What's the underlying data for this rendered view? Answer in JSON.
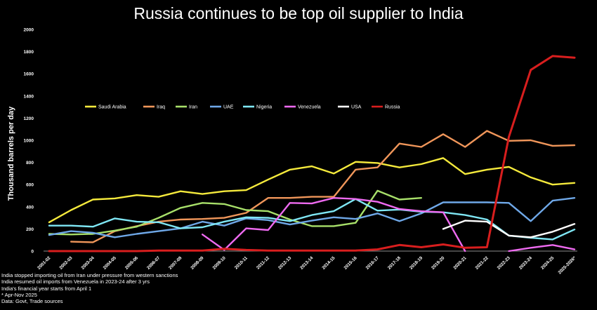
{
  "title": "Russia continues to be top oil supplier to India",
  "notes": [
    "India stopped importing oil from Iran under pressure from western sanctions",
    "India resumed oil imports from Venezuela in 2023-24 after 3 yrs",
    "India's financial year starts from April 1",
    "* Apr-Nov 2025",
    "Data: Govt, Trade sources"
  ],
  "chart_data": {
    "type": "line",
    "title": "Russia continues to be top oil supplier to India",
    "ylabel": "Thousand barrels per day",
    "xlabel": "",
    "ylim": [
      0,
      2000
    ],
    "yticks": [
      0,
      200,
      400,
      600,
      800,
      1000,
      1200,
      1400,
      1600,
      1800,
      2000
    ],
    "grid": false,
    "legend": "upper-left",
    "categories": [
      "2001-02",
      "2002-03",
      "2003-04",
      "2004-05",
      "2005-06",
      "2006-07",
      "2007-08",
      "2008-09",
      "2009-10",
      "2010-11",
      "2011-12",
      "2012-13",
      "2013-14",
      "2014-15",
      "2015-16",
      "2016-17",
      "2017-18",
      "2018-19",
      "2019-20",
      "2020-21",
      "2021-22",
      "2022-23",
      "2023-24",
      "2024-25",
      "2025-2026*"
    ],
    "series": [
      {
        "name": "Saudi Arabia",
        "color": "#f5ea3c",
        "values": [
          260,
          370,
          465,
          475,
          505,
          490,
          540,
          515,
          540,
          550,
          645,
          735,
          765,
          700,
          805,
          795,
          755,
          785,
          840,
          695,
          735,
          760,
          665,
          600,
          615
        ]
      },
      {
        "name": "Iraq",
        "color": "#f0965a",
        "values": [
          null,
          85,
          80,
          180,
          225,
          265,
          285,
          290,
          300,
          345,
          480,
          480,
          490,
          490,
          735,
          755,
          970,
          940,
          1055,
          940,
          1085,
          995,
          1000,
          950,
          955
        ]
      },
      {
        "name": "Iran",
        "color": "#a8e06a",
        "values": [
          155,
          150,
          155,
          185,
          220,
          300,
          390,
          435,
          425,
          370,
          360,
          285,
          225,
          225,
          255,
          545,
          465,
          480,
          null,
          null,
          null,
          null,
          null,
          null,
          null
        ]
      },
      {
        "name": "UAE",
        "color": "#6fa8e8",
        "values": [
          145,
          180,
          165,
          125,
          155,
          180,
          205,
          265,
          230,
          295,
          280,
          240,
          275,
          305,
          290,
          340,
          270,
          340,
          440,
          440,
          440,
          435,
          270,
          455,
          480
        ]
      },
      {
        "name": "Nigeria",
        "color": "#7fe7f5",
        "values": [
          230,
          230,
          220,
          295,
          265,
          260,
          205,
          215,
          265,
          305,
          300,
          270,
          325,
          360,
          470,
          365,
          375,
          355,
          350,
          325,
          285,
          140,
          120,
          105,
          195
        ]
      },
      {
        "name": "Venezuela",
        "color": "#ee6af0",
        "values": [
          null,
          null,
          null,
          null,
          null,
          null,
          null,
          150,
          10,
          205,
          190,
          435,
          430,
          480,
          470,
          445,
          380,
          360,
          350,
          0,
          null,
          0,
          30,
          55,
          15
        ]
      },
      {
        "name": "USA",
        "color": "#ffffff",
        "values": [
          null,
          null,
          null,
          null,
          null,
          null,
          null,
          null,
          null,
          null,
          null,
          null,
          null,
          null,
          null,
          null,
          null,
          null,
          200,
          275,
          265,
          140,
          125,
          175,
          245
        ]
      },
      {
        "name": "Russia",
        "color": "#d81e1e",
        "values": [
          0,
          0,
          0,
          0,
          0,
          5,
          5,
          5,
          20,
          10,
          5,
          5,
          5,
          5,
          5,
          15,
          55,
          35,
          60,
          30,
          35,
          1030,
          1635,
          1760,
          1745
        ]
      }
    ]
  }
}
